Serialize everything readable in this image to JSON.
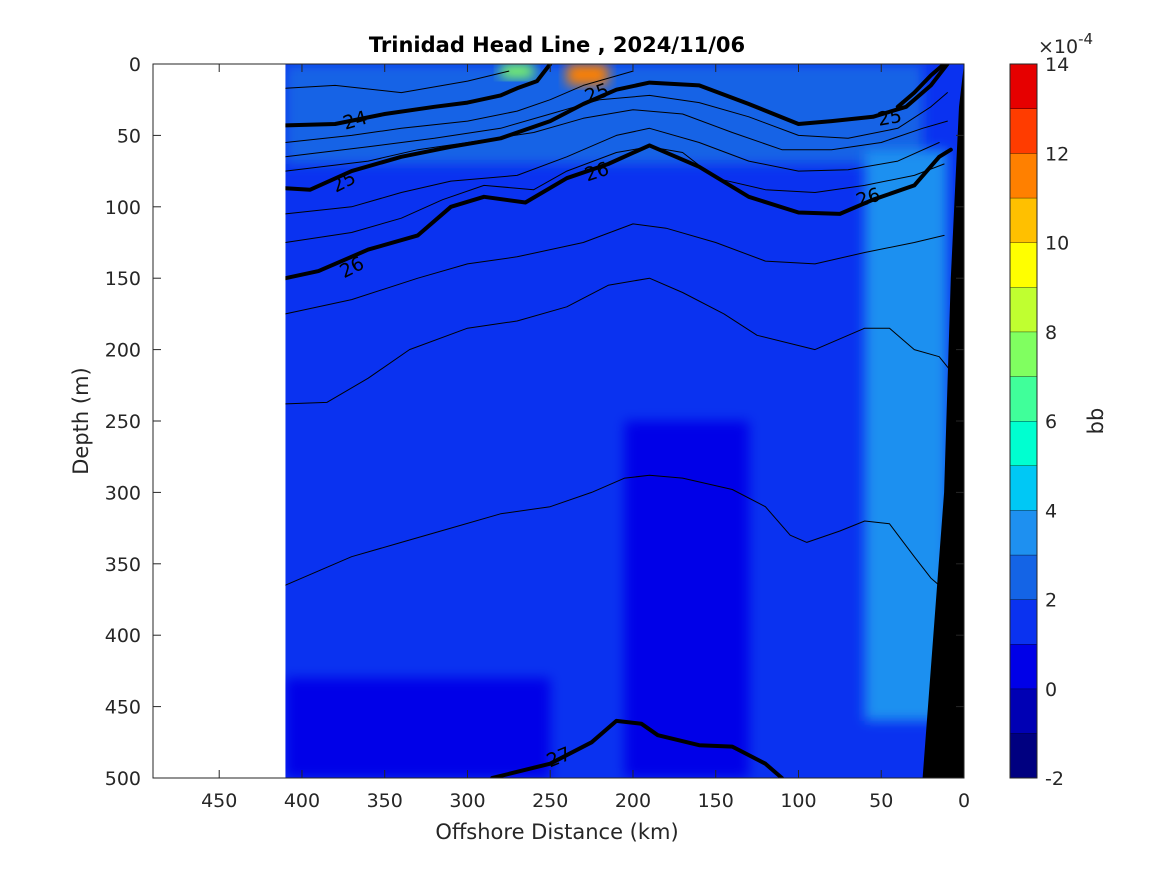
{
  "chart_data": {
    "type": "heatmap",
    "title": "Trinidad Head Line , 2024/11/06",
    "xlabel": "Offshore Distance (km)",
    "ylabel": "Depth (m)",
    "xlim": [
      490,
      0
    ],
    "ylim": [
      500,
      0
    ],
    "x_reversed": true,
    "y_reversed": true,
    "x_ticks": [
      "450",
      "400",
      "350",
      "300",
      "250",
      "200",
      "150",
      "100",
      "50",
      "0"
    ],
    "x_tick_values": [
      450,
      400,
      350,
      300,
      250,
      200,
      150,
      100,
      50,
      0
    ],
    "y_ticks": [
      "0",
      "50",
      "100",
      "150",
      "200",
      "250",
      "300",
      "350",
      "400",
      "450",
      "500"
    ],
    "y_tick_values": [
      0,
      50,
      100,
      150,
      200,
      250,
      300,
      350,
      400,
      450,
      500
    ],
    "data_x_extent": [
      410,
      0
    ],
    "colorbar": {
      "label": "bb",
      "exponent_text": "×10",
      "exponent_power": "-4",
      "ticks": [
        "-2",
        "0",
        "2",
        "4",
        "6",
        "8",
        "10",
        "12",
        "14"
      ],
      "tick_values": [
        -2,
        0,
        2,
        4,
        6,
        8,
        10,
        12,
        14
      ],
      "range": [
        -2,
        14
      ],
      "levels": [
        -2,
        -1,
        0,
        1,
        2,
        3,
        4,
        5,
        6,
        7,
        8,
        9,
        10,
        11,
        12,
        13,
        14
      ],
      "colors": [
        "#000080",
        "#0000b4",
        "#0000e8",
        "#0a32f0",
        "#1464e6",
        "#1e90f0",
        "#00c8f5",
        "#00ffd0",
        "#40ff9a",
        "#80ff60",
        "#c0ff30",
        "#ffff00",
        "#ffc000",
        "#ff8000",
        "#ff3c00",
        "#e60000",
        "#a00000"
      ]
    },
    "background_field": {
      "description_values": "bb x 1e-4 by region",
      "regions": [
        {
          "x": [
            410,
            0
          ],
          "depth": [
            0,
            500
          ],
          "value": 1.5
        },
        {
          "x": [
            205,
            130
          ],
          "depth": [
            250,
            500
          ],
          "value": 0.5
        },
        {
          "x": [
            410,
            250
          ],
          "depth": [
            430,
            500
          ],
          "value": 0.5
        },
        {
          "x": [
            410,
            25
          ],
          "depth": [
            0,
            70
          ],
          "value": 2.5
        },
        {
          "x": [
            60,
            10
          ],
          "depth": [
            60,
            460
          ],
          "value": 3.5
        },
        {
          "x": [
            240,
            215
          ],
          "depth": [
            0,
            15
          ],
          "value": 11
        },
        {
          "x": [
            280,
            260
          ],
          "depth": [
            0,
            10
          ],
          "value": 7
        }
      ]
    },
    "contours": [
      {
        "label": "24",
        "bold": true,
        "points": [
          [
            410,
            43
          ],
          [
            380,
            42
          ],
          [
            350,
            35
          ],
          [
            320,
            30
          ],
          [
            300,
            27
          ],
          [
            280,
            22
          ],
          [
            270,
            17
          ],
          [
            258,
            12
          ],
          [
            250,
            0
          ]
        ]
      },
      {
        "label": "25",
        "bold": true,
        "points": [
          [
            410,
            87
          ],
          [
            395,
            88
          ],
          [
            370,
            75
          ],
          [
            340,
            65
          ],
          [
            310,
            58
          ],
          [
            280,
            52
          ],
          [
            250,
            40
          ],
          [
            230,
            28
          ],
          [
            210,
            18
          ],
          [
            190,
            13
          ],
          [
            160,
            15
          ],
          [
            130,
            28
          ],
          [
            100,
            42
          ],
          [
            80,
            40
          ],
          [
            55,
            37
          ],
          [
            35,
            30
          ],
          [
            20,
            15
          ],
          [
            10,
            0
          ]
        ]
      },
      {
        "label": "25",
        "bold": true,
        "points": [
          [
            40,
            30
          ],
          [
            30,
            20
          ],
          [
            20,
            8
          ],
          [
            12,
            0
          ]
        ]
      },
      {
        "label": "26",
        "bold": true,
        "points": [
          [
            410,
            150
          ],
          [
            390,
            145
          ],
          [
            360,
            130
          ],
          [
            330,
            120
          ],
          [
            310,
            100
          ],
          [
            290,
            93
          ],
          [
            265,
            97
          ],
          [
            240,
            80
          ],
          [
            215,
            70
          ],
          [
            190,
            57
          ],
          [
            160,
            72
          ],
          [
            130,
            93
          ],
          [
            100,
            104
          ],
          [
            75,
            105
          ],
          [
            55,
            95
          ],
          [
            30,
            85
          ],
          [
            15,
            65
          ],
          [
            8,
            60
          ]
        ]
      },
      {
        "label": "27",
        "bold": true,
        "points": [
          [
            285,
            500
          ],
          [
            250,
            490
          ],
          [
            225,
            475
          ],
          [
            210,
            460
          ],
          [
            195,
            462
          ],
          [
            185,
            470
          ],
          [
            160,
            477
          ],
          [
            140,
            478
          ],
          [
            120,
            490
          ],
          [
            110,
            500
          ]
        ]
      },
      {
        "label": "",
        "bold": false,
        "points": [
          [
            410,
            17
          ],
          [
            380,
            15
          ],
          [
            340,
            20
          ],
          [
            300,
            12
          ],
          [
            275,
            5
          ]
        ]
      },
      {
        "label": "",
        "bold": false,
        "points": [
          [
            410,
            55
          ],
          [
            370,
            50
          ],
          [
            340,
            45
          ],
          [
            300,
            40
          ],
          [
            270,
            33
          ],
          [
            250,
            25
          ],
          [
            230,
            15
          ],
          [
            200,
            5
          ]
        ]
      },
      {
        "label": "",
        "bold": false,
        "points": [
          [
            410,
            65
          ],
          [
            360,
            58
          ],
          [
            320,
            52
          ],
          [
            280,
            45
          ],
          [
            250,
            35
          ],
          [
            220,
            25
          ],
          [
            190,
            22
          ],
          [
            160,
            27
          ],
          [
            130,
            37
          ],
          [
            100,
            50
          ],
          [
            70,
            52
          ],
          [
            40,
            45
          ],
          [
            20,
            30
          ],
          [
            10,
            20
          ]
        ]
      },
      {
        "label": "",
        "bold": false,
        "points": [
          [
            410,
            75
          ],
          [
            360,
            68
          ],
          [
            330,
            60
          ],
          [
            300,
            55
          ],
          [
            260,
            48
          ],
          [
            230,
            38
          ],
          [
            200,
            32
          ],
          [
            170,
            35
          ],
          [
            140,
            48
          ],
          [
            110,
            60
          ],
          [
            80,
            60
          ],
          [
            50,
            55
          ],
          [
            25,
            45
          ],
          [
            10,
            40
          ]
        ]
      },
      {
        "label": "",
        "bold": false,
        "points": [
          [
            410,
            105
          ],
          [
            370,
            100
          ],
          [
            340,
            90
          ],
          [
            310,
            82
          ],
          [
            270,
            78
          ],
          [
            240,
            65
          ],
          [
            210,
            50
          ],
          [
            190,
            45
          ],
          [
            160,
            55
          ],
          [
            130,
            68
          ],
          [
            100,
            75
          ],
          [
            70,
            74
          ],
          [
            40,
            68
          ],
          [
            15,
            55
          ]
        ]
      },
      {
        "label": "",
        "bold": false,
        "points": [
          [
            410,
            125
          ],
          [
            370,
            118
          ],
          [
            340,
            108
          ],
          [
            315,
            95
          ],
          [
            290,
            85
          ],
          [
            260,
            88
          ],
          [
            240,
            75
          ],
          [
            210,
            62
          ],
          [
            190,
            58
          ],
          [
            170,
            62
          ],
          [
            150,
            80
          ],
          [
            120,
            88
          ],
          [
            90,
            90
          ],
          [
            60,
            85
          ],
          [
            30,
            78
          ],
          [
            12,
            70
          ]
        ]
      },
      {
        "label": "",
        "bold": false,
        "points": [
          [
            410,
            175
          ],
          [
            370,
            165
          ],
          [
            330,
            150
          ],
          [
            300,
            140
          ],
          [
            270,
            135
          ],
          [
            230,
            125
          ],
          [
            200,
            112
          ],
          [
            180,
            115
          ],
          [
            150,
            125
          ],
          [
            120,
            138
          ],
          [
            90,
            140
          ],
          [
            60,
            132
          ],
          [
            30,
            125
          ],
          [
            12,
            120
          ]
        ]
      },
      {
        "label": "",
        "bold": false,
        "points": [
          [
            410,
            238
          ],
          [
            385,
            237
          ],
          [
            360,
            220
          ],
          [
            335,
            200
          ],
          [
            300,
            185
          ],
          [
            270,
            180
          ],
          [
            240,
            170
          ],
          [
            215,
            155
          ],
          [
            190,
            150
          ],
          [
            170,
            160
          ],
          [
            145,
            175
          ],
          [
            125,
            190
          ],
          [
            90,
            200
          ],
          [
            60,
            185
          ],
          [
            45,
            185
          ],
          [
            30,
            200
          ],
          [
            15,
            205
          ],
          [
            8,
            215
          ]
        ]
      },
      {
        "label": "",
        "bold": false,
        "points": [
          [
            410,
            365
          ],
          [
            390,
            355
          ],
          [
            370,
            345
          ],
          [
            340,
            335
          ],
          [
            310,
            325
          ],
          [
            280,
            315
          ],
          [
            250,
            310
          ],
          [
            225,
            300
          ],
          [
            205,
            290
          ],
          [
            190,
            288
          ],
          [
            170,
            290
          ],
          [
            140,
            298
          ],
          [
            120,
            310
          ],
          [
            105,
            330
          ],
          [
            95,
            335
          ],
          [
            75,
            327
          ],
          [
            60,
            320
          ],
          [
            45,
            322
          ],
          [
            30,
            345
          ],
          [
            20,
            360
          ],
          [
            10,
            370
          ]
        ]
      }
    ],
    "clabels": [
      {
        "text": "24",
        "x": 368,
        "y": 39,
        "rotate": -16
      },
      {
        "text": "25",
        "x": 375,
        "y": 82,
        "rotate": -27
      },
      {
        "text": "25",
        "x": 222,
        "y": 20,
        "rotate": -20
      },
      {
        "text": "25",
        "x": 45,
        "y": 37,
        "rotate": -10
      },
      {
        "text": "26",
        "x": 370,
        "y": 142,
        "rotate": -27
      },
      {
        "text": "26",
        "x": 222,
        "y": 75,
        "rotate": -18
      },
      {
        "text": "26",
        "x": 58,
        "y": 93,
        "rotate": -18
      },
      {
        "text": "27",
        "x": 245,
        "y": 485,
        "rotate": -22
      }
    ],
    "bathymetry": {
      "color": "#000000",
      "points": [
        [
          25,
          500
        ],
        [
          12,
          300
        ],
        [
          8,
          150
        ],
        [
          3,
          30
        ],
        [
          0,
          0
        ],
        [
          0,
          500
        ]
      ]
    }
  }
}
